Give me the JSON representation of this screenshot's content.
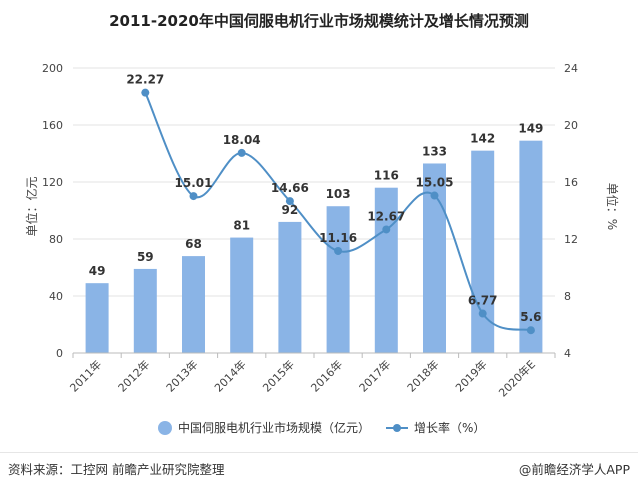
{
  "chart_data": {
    "type": "bar+line",
    "title": "2011-2020年中国伺服电机行业市场规模统计及增长情况预测",
    "categories": [
      "2011年",
      "2012年",
      "2013年",
      "2014年",
      "2015年",
      "2016年",
      "2017年",
      "2018年",
      "2019年",
      "2020年E"
    ],
    "series": [
      {
        "name": "中国伺服电机行业市场规模（亿元）",
        "type": "bar",
        "axis": "left",
        "values": [
          49,
          59,
          68,
          81,
          92,
          103,
          116,
          133,
          142,
          149
        ],
        "color": "#8ab4e6"
      },
      {
        "name": "增长率（%）",
        "type": "line",
        "axis": "right",
        "values": [
          null,
          22.27,
          15.01,
          18.04,
          14.66,
          11.16,
          12.67,
          15.05,
          6.77,
          5.6
        ],
        "color": "#4f8fc6"
      }
    ],
    "value_labels": {
      "bars": [
        "49",
        "59",
        "68",
        "81",
        "92",
        "103",
        "116",
        "133",
        "142",
        "149"
      ],
      "line": [
        "",
        "22.27",
        "15.01",
        "18.04",
        "14.66",
        "11.16",
        "12.67",
        "15.05",
        "6.77",
        "5.6"
      ]
    },
    "y_left": {
      "label": "单位：亿元",
      "min": 0,
      "max": 200,
      "ticks": [
        "0",
        "40",
        "80",
        "120",
        "160",
        "200"
      ]
    },
    "y_right": {
      "label": "单位：%",
      "min": 4,
      "max": 24,
      "ticks": [
        "4",
        "8",
        "12",
        "16",
        "20",
        "24"
      ]
    },
    "grid": true,
    "legend_position": "bottom"
  },
  "footer": {
    "source": "资料来源：工控网 前瞻产业研究院整理",
    "credit": "@前瞻经济学人APP"
  }
}
